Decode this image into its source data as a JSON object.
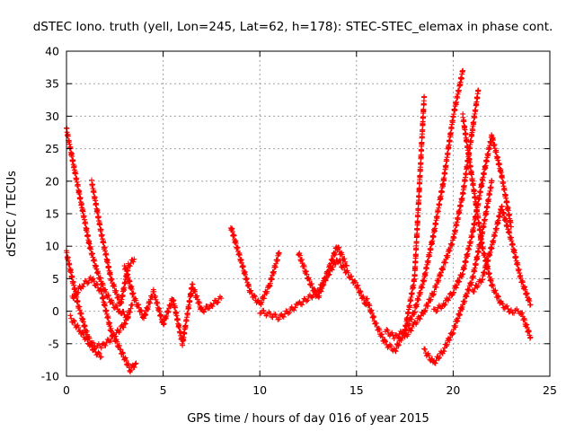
{
  "chart_data": {
    "type": "scatter",
    "title": "dSTEC Iono. truth (yell, Lon=245, Lat=62, h=178): STEC-STEC_elemax in phase cont.",
    "xlabel": "GPS time / hours of day 016 of year 2015",
    "ylabel": "dSTEC  / TECUs",
    "xlim": [
      0,
      25
    ],
    "ylim": [
      -10,
      40
    ],
    "xticks": [
      0,
      5,
      10,
      15,
      20,
      25
    ],
    "yticks": [
      -10,
      -5,
      0,
      5,
      10,
      15,
      20,
      25,
      30,
      35,
      40
    ],
    "grid": true,
    "marker": "plus",
    "marker_color": "#ff0000",
    "series": [
      {
        "x": [
          0.0,
          0.4,
          0.8,
          1.2,
          1.6,
          2.0,
          2.4,
          2.8,
          3.2
        ],
        "y": [
          28,
          22,
          16,
          10,
          6,
          3,
          1,
          0,
          -1
        ]
      },
      {
        "x": [
          0.0,
          0.3,
          0.6,
          1.0,
          1.4,
          1.8
        ],
        "y": [
          9,
          5,
          1,
          -3,
          -6,
          -7
        ]
      },
      {
        "x": [
          0.2,
          0.7,
          1.2,
          1.8,
          2.4,
          3.0,
          3.4
        ],
        "y": [
          -1,
          -3,
          -5,
          -5.5,
          -4,
          -2,
          1
        ]
      },
      {
        "x": [
          0.3,
          0.8,
          1.3,
          1.8,
          2.3,
          2.8,
          3.3,
          3.6
        ],
        "y": [
          2,
          4,
          5,
          3,
          -3,
          -6,
          -9,
          -8
        ]
      },
      {
        "x": [
          1.3,
          1.8,
          2.3,
          2.8,
          3.2,
          3.5
        ],
        "y": [
          20,
          12,
          5,
          1,
          7,
          8
        ]
      },
      {
        "x": [
          3.0,
          3.5,
          4.0,
          4.5,
          5.0,
          5.5,
          6.0,
          6.5,
          7.0,
          7.5,
          8.0
        ],
        "y": [
          7,
          2,
          -1,
          3,
          -2,
          2,
          -5,
          4,
          0,
          1,
          2
        ]
      },
      {
        "x": [
          8.5,
          9.0,
          9.5,
          10.0,
          10.5,
          11.0
        ],
        "y": [
          13,
          8,
          3,
          1,
          4,
          9
        ]
      },
      {
        "x": [
          10.0,
          11.0,
          12.0,
          13.0,
          14.0,
          15.0,
          15.5
        ],
        "y": [
          0,
          -1,
          1,
          3,
          8,
          4,
          1
        ]
      },
      {
        "x": [
          12.0,
          12.5,
          13.0,
          13.5,
          14.0,
          14.5
        ],
        "y": [
          9,
          5,
          2,
          6,
          10,
          7
        ]
      },
      {
        "x": [
          15.5,
          16.0,
          16.5,
          17.0,
          17.5,
          18.0,
          18.5
        ],
        "y": [
          2,
          -2,
          -5,
          -6,
          -3,
          5,
          33
        ]
      },
      {
        "x": [
          16.5,
          17.0,
          17.5,
          18.0,
          18.5,
          19.0,
          19.5,
          20.0,
          20.5
        ],
        "y": [
          -3,
          -4,
          -3,
          0,
          5,
          12,
          20,
          30,
          37
        ]
      },
      {
        "x": [
          17.5,
          18.0,
          18.5,
          19.0,
          19.5,
          20.0,
          20.5,
          21.0,
          21.3
        ],
        "y": [
          -4,
          -2,
          0,
          3,
          7,
          11,
          18,
          28,
          34
        ]
      },
      {
        "x": [
          18.5,
          19.0,
          19.5,
          20.0,
          20.5,
          21.0,
          21.5,
          22.0
        ],
        "y": [
          -6,
          -8,
          -6,
          -3,
          1,
          5,
          12,
          20
        ]
      },
      {
        "x": [
          19.0,
          19.5,
          20.0,
          20.5,
          21.0,
          21.5,
          22.0,
          22.5,
          23.0
        ],
        "y": [
          0,
          1,
          3,
          6,
          12,
          20,
          27,
          21,
          13
        ]
      },
      {
        "x": [
          20.5,
          21.0,
          21.5,
          22.0,
          22.5,
          23.0,
          23.5,
          24.0
        ],
        "y": [
          30,
          20,
          10,
          4,
          1,
          0,
          0,
          -4
        ]
      },
      {
        "x": [
          21.0,
          21.5,
          22.0,
          22.5,
          23.0,
          23.5,
          24.0
        ],
        "y": [
          3,
          5,
          10,
          16,
          11,
          5,
          1
        ]
      }
    ]
  }
}
